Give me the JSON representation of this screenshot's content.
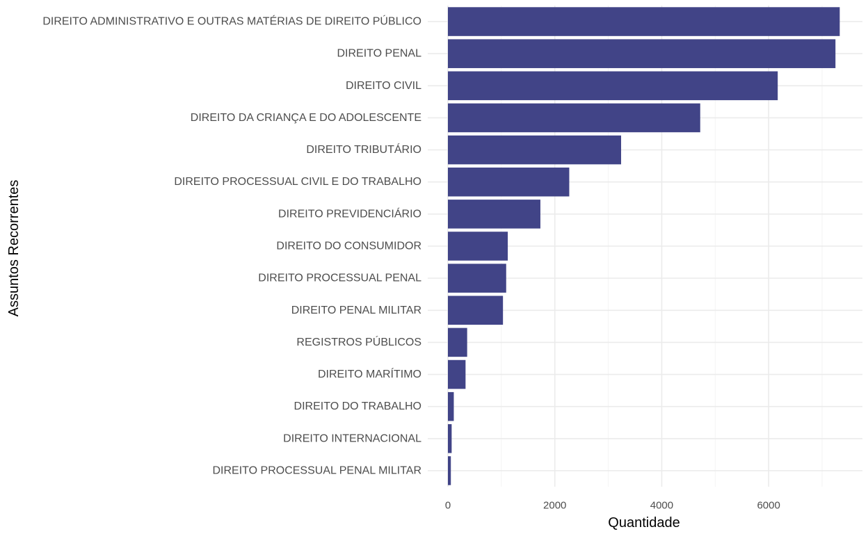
{
  "chart_data": {
    "type": "bar",
    "orientation": "horizontal",
    "xlabel": "Quantidade",
    "ylabel": "Assuntos Recorrentes",
    "xlim": [
      0,
      7700
    ],
    "x_ticks": [
      0,
      2000,
      4000,
      6000
    ],
    "grid": true,
    "bar_color": "#414487",
    "categories": [
      "DIREITO ADMINISTRATIVO E OUTRAS MATÉRIAS DE DIREITO PÚBLICO",
      "DIREITO PENAL",
      "DIREITO CIVIL",
      "DIREITO DA CRIANÇA E DO ADOLESCENTE",
      "DIREITO TRIBUTÁRIO",
      "DIREITO PROCESSUAL CIVIL E DO TRABALHO",
      "DIREITO PREVIDENCIÁRIO",
      "DIREITO DO CONSUMIDOR",
      "DIREITO PROCESSUAL PENAL",
      "DIREITO PENAL MILITAR",
      "REGISTROS PÚBLICOS",
      "DIREITO MARÍTIMO",
      "DIREITO DO TRABALHO",
      "DIREITO INTERNACIONAL",
      "DIREITO PROCESSUAL PENAL MILITAR"
    ],
    "values": [
      7330,
      7250,
      6170,
      4720,
      3240,
      2270,
      1730,
      1120,
      1090,
      1030,
      360,
      330,
      110,
      70,
      55
    ]
  }
}
